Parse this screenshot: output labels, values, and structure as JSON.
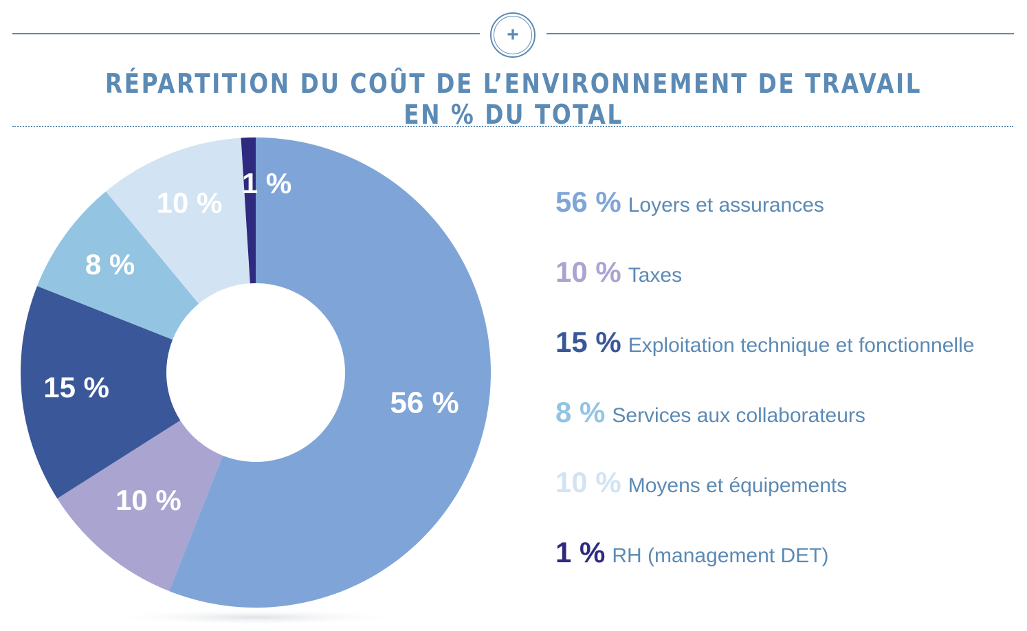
{
  "title": "RÉPARTITION DU COÛT DE L’ENVIRONNEMENT DE TRAVAIL EN % DU TOTAL",
  "badge_symbol": "+",
  "chart_data": {
    "type": "pie",
    "donut": true,
    "title": "RÉPARTITION DU COÛT DE L’ENVIRONNEMENT DE TRAVAIL EN % DU TOTAL",
    "categories": [
      "Loyers et assurances",
      "Taxes",
      "Exploitation technique et fonctionnelle",
      "Services aux collaborateurs",
      "Moyens et équipements",
      "RH (management DET)"
    ],
    "values": [
      56,
      10,
      15,
      8,
      10,
      1
    ],
    "value_labels": [
      "56 %",
      "10 %",
      "15 %",
      "8 %",
      "10 %",
      "1 %"
    ],
    "colors": [
      "#7fa5d8",
      "#a9a4d0",
      "#3a5799",
      "#93c4e2",
      "#d2e4f3",
      "#2e2a80"
    ],
    "legend_position": "right"
  },
  "legend": [
    {
      "pct": "56 %",
      "label": "Loyers et assurances",
      "color": "#7fa5d8"
    },
    {
      "pct": "10 %",
      "label": "Taxes",
      "color": "#a9a4d0"
    },
    {
      "pct": "15 %",
      "label": "Exploitation technique et fonctionnelle",
      "color": "#3a5799"
    },
    {
      "pct": "8 %",
      "label": "Services aux collaborateurs",
      "color": "#93c4e2"
    },
    {
      "pct": "10 %",
      "label": "Moyens et équipements",
      "color": "#d2e4f3"
    },
    {
      "pct": "1 %",
      "label": "RH (management DET)",
      "color": "#2e2a80"
    }
  ]
}
